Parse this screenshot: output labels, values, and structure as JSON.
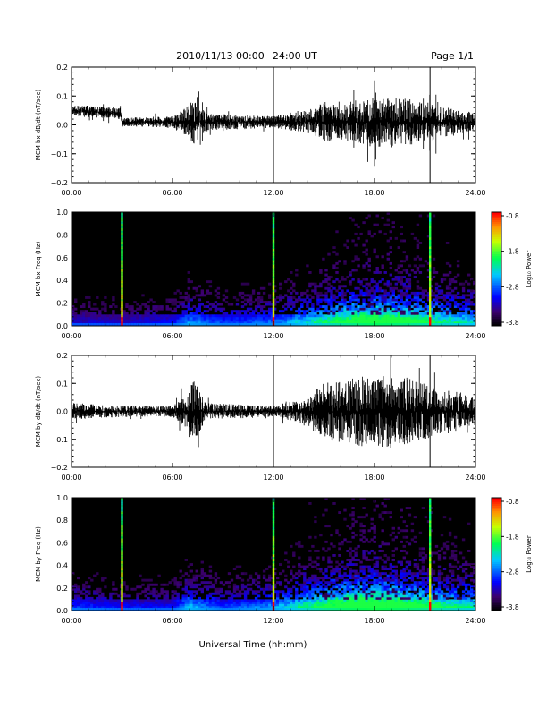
{
  "header": {
    "title": "2010/11/13  00:00−24:00 UT",
    "page": "Page 1/1"
  },
  "xlabel": "Universal Time (hh:mm)",
  "chart_data": [
    {
      "type": "line",
      "ylabel": "MCM bx dB/dt (nT/sec)",
      "ylim": [
        -0.2,
        0.2
      ],
      "xlim": [
        0,
        24
      ],
      "x_ticks": [
        "00:00",
        "06:00",
        "12:00",
        "18:00",
        "24:00"
      ],
      "y_ticks": [
        "−0.2",
        "−0.1",
        "0.0",
        "0.1",
        "0.2"
      ],
      "baseline": [
        {
          "x": 0,
          "y": 0.05
        },
        {
          "x": 2.9,
          "y": 0.04
        },
        {
          "x": 3.0,
          "y": 0.01
        },
        {
          "x": 24,
          "y": 0.01
        }
      ],
      "envelope": [
        {
          "x": 0,
          "a": 0.02
        },
        {
          "x": 3,
          "a": 0.02
        },
        {
          "x": 3.2,
          "a": 0.015
        },
        {
          "x": 6,
          "a": 0.02
        },
        {
          "x": 6.8,
          "a": 0.05
        },
        {
          "x": 7.3,
          "a": 0.08
        },
        {
          "x": 8.0,
          "a": 0.03
        },
        {
          "x": 12,
          "a": 0.02
        },
        {
          "x": 14,
          "a": 0.04
        },
        {
          "x": 15,
          "a": 0.07
        },
        {
          "x": 16,
          "a": 0.06
        },
        {
          "x": 17,
          "a": 0.08
        },
        {
          "x": 18,
          "a": 0.09
        },
        {
          "x": 20,
          "a": 0.08
        },
        {
          "x": 21,
          "a": 0.07
        },
        {
          "x": 22.5,
          "a": 0.05
        },
        {
          "x": 24,
          "a": 0.03
        }
      ],
      "spikes": [
        {
          "x": 3.0,
          "y_min": -0.2,
          "y_max": 0.2
        },
        {
          "x": 12.0,
          "y_min": -0.2,
          "y_max": 0.2
        },
        {
          "x": 21.3,
          "y_min": -0.2,
          "y_max": 0.2
        }
      ]
    },
    {
      "type": "heatmap",
      "ylabel": "MCM bx Freq (Hz)",
      "ylim": [
        0.0,
        1.0
      ],
      "xlim": [
        0,
        24
      ],
      "x_ticks": [
        "00:00",
        "06:00",
        "12:00",
        "18:00",
        "24:00"
      ],
      "y_ticks": [
        "0.0",
        "0.2",
        "0.4",
        "0.6",
        "0.8",
        "1.0"
      ],
      "colorbar": {
        "label": "Log₁₀ Power",
        "ticks": [
          "-0.8",
          "-1.8",
          "-2.8",
          "-3.8"
        ],
        "range": [
          -3.8,
          -0.8
        ]
      },
      "activity": [
        {
          "x": 0,
          "v": 0.2
        },
        {
          "x": 3,
          "v": 0.2
        },
        {
          "x": 6,
          "v": 0.25
        },
        {
          "x": 7,
          "v": 0.4
        },
        {
          "x": 9,
          "v": 0.3
        },
        {
          "x": 12,
          "v": 0.35
        },
        {
          "x": 14,
          "v": 0.5
        },
        {
          "x": 16,
          "v": 0.7
        },
        {
          "x": 18,
          "v": 0.85
        },
        {
          "x": 20,
          "v": 0.75
        },
        {
          "x": 22,
          "v": 0.6
        },
        {
          "x": 24,
          "v": 0.5
        }
      ],
      "broadband": [
        3.0,
        12.0,
        21.3
      ]
    },
    {
      "type": "line",
      "ylabel": "MCM by dB/dt (nT/sec)",
      "ylim": [
        -0.2,
        0.2
      ],
      "xlim": [
        0,
        24
      ],
      "x_ticks": [
        "00:00",
        "06:00",
        "12:00",
        "18:00",
        "24:00"
      ],
      "y_ticks": [
        "−0.2",
        "−0.1",
        "0.0",
        "0.1",
        "0.2"
      ],
      "baseline": [
        {
          "x": 0,
          "y": 0.0
        },
        {
          "x": 24,
          "y": 0.0
        }
      ],
      "envelope": [
        {
          "x": 0,
          "a": 0.03
        },
        {
          "x": 3,
          "a": 0.02
        },
        {
          "x": 6,
          "a": 0.02
        },
        {
          "x": 6.8,
          "a": 0.06
        },
        {
          "x": 7.2,
          "a": 0.12
        },
        {
          "x": 8.0,
          "a": 0.03
        },
        {
          "x": 12,
          "a": 0.02
        },
        {
          "x": 13.5,
          "a": 0.04
        },
        {
          "x": 15,
          "a": 0.1
        },
        {
          "x": 16.5,
          "a": 0.12
        },
        {
          "x": 18,
          "a": 0.13
        },
        {
          "x": 20,
          "a": 0.12
        },
        {
          "x": 21.5,
          "a": 0.09
        },
        {
          "x": 23,
          "a": 0.07
        },
        {
          "x": 24,
          "a": 0.05
        }
      ],
      "spikes": [
        {
          "x": 3.0,
          "y_min": -0.2,
          "y_max": 0.2
        },
        {
          "x": 12.0,
          "y_min": -0.2,
          "y_max": 0.2
        },
        {
          "x": 21.3,
          "y_min": -0.2,
          "y_max": 0.2
        }
      ]
    },
    {
      "type": "heatmap",
      "ylabel": "MCM by Freq (Hz)",
      "ylim": [
        0.0,
        1.0
      ],
      "xlim": [
        0,
        24
      ],
      "x_ticks": [
        "00:00",
        "06:00",
        "12:00",
        "18:00",
        "24:00"
      ],
      "y_ticks": [
        "0.0",
        "0.2",
        "0.4",
        "0.6",
        "0.8",
        "1.0"
      ],
      "colorbar": {
        "label": "Log₁₀ Power",
        "ticks": [
          "-0.8",
          "-1.8",
          "-2.8",
          "-3.8"
        ],
        "range": [
          -3.8,
          -0.8
        ]
      },
      "activity": [
        {
          "x": 0,
          "v": 0.3
        },
        {
          "x": 3,
          "v": 0.25
        },
        {
          "x": 6,
          "v": 0.25
        },
        {
          "x": 7,
          "v": 0.45
        },
        {
          "x": 9,
          "v": 0.3
        },
        {
          "x": 12,
          "v": 0.4
        },
        {
          "x": 14,
          "v": 0.6
        },
        {
          "x": 16,
          "v": 0.8
        },
        {
          "x": 18,
          "v": 0.9
        },
        {
          "x": 20,
          "v": 0.8
        },
        {
          "x": 22,
          "v": 0.65
        },
        {
          "x": 24,
          "v": 0.55
        }
      ],
      "broadband": [
        3.0,
        12.0,
        21.3
      ]
    }
  ]
}
